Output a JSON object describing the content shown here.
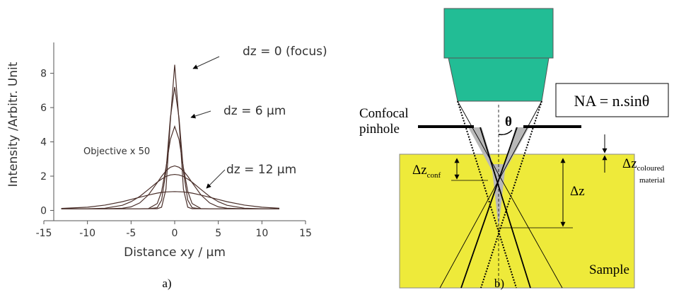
{
  "chart_data": {
    "type": "line",
    "x": [
      -13,
      -10,
      -8,
      -6,
      -5,
      -4,
      -3,
      -2,
      -1.5,
      -1,
      -0.5,
      0,
      0.5,
      1,
      1.5,
      2,
      3,
      4,
      5,
      6,
      8,
      10,
      12
    ],
    "series": [
      {
        "color": "#4a2f2a",
        "values": [
          0.1,
          0.1,
          0.1,
          0.1,
          0.1,
          0.1,
          0.1,
          0.1,
          0.19,
          1.24,
          5.2,
          8.5,
          5.2,
          1.24,
          0.19,
          0.1,
          0.1,
          0.1,
          0.1,
          0.1,
          0.1,
          0.1,
          0.1
        ]
      },
      {
        "color": "#4a2f2a",
        "values": [
          0.1,
          0.1,
          0.1,
          0.1,
          0.1,
          0.1,
          0.1,
          0.16,
          0.6,
          2.27,
          5.38,
          7.2,
          5.38,
          2.27,
          0.6,
          0.16,
          0.1,
          0.1,
          0.1,
          0.1,
          0.1,
          0.1,
          0.1
        ]
      },
      {
        "color": "#4a2f2a",
        "values": [
          0.1,
          0.1,
          0.1,
          0.1,
          0.1,
          0.1,
          0.11,
          0.4,
          1.11,
          2.5,
          4.14,
          4.9,
          4.14,
          2.5,
          1.11,
          0.4,
          0.11,
          0.1,
          0.1,
          0.1,
          0.1,
          0.1,
          0.1
        ]
      },
      {
        "color": "#4a2f2a",
        "values": [
          0.1,
          0.1,
          0.1,
          0.13,
          0.21,
          0.44,
          0.91,
          1.62,
          1.99,
          2.31,
          2.52,
          2.6,
          2.52,
          2.31,
          1.99,
          1.62,
          0.91,
          0.44,
          0.21,
          0.13,
          0.1,
          0.1,
          0.1
        ]
      },
      {
        "color": "#4a2f2a",
        "values": [
          0.1,
          0.1,
          0.13,
          0.3,
          0.51,
          0.82,
          1.23,
          1.65,
          1.83,
          1.98,
          2.07,
          2.1,
          2.07,
          1.98,
          1.83,
          1.65,
          1.23,
          0.82,
          0.51,
          0.3,
          0.13,
          0.1,
          0.1
        ]
      },
      {
        "color": "#4a2f2a",
        "values": [
          0.12,
          0.19,
          0.31,
          0.51,
          0.64,
          0.77,
          0.9,
          1.01,
          1.05,
          1.08,
          1.09,
          1.1,
          1.09,
          1.08,
          1.05,
          1.01,
          0.9,
          0.77,
          0.64,
          0.51,
          0.31,
          0.19,
          0.13
        ]
      }
    ],
    "xlabel": "Distance xy / µm",
    "ylabel": "Intensity /Arbitr. Unit",
    "xlim": [
      -15,
      15
    ],
    "xticks": [
      -15,
      -10,
      -5,
      0,
      5,
      10,
      15
    ],
    "ylim": [
      -0.6,
      9.8
    ],
    "yticks": [
      0,
      2,
      4,
      6,
      8
    ],
    "annotations": [
      "dz = 0 (focus)",
      "dz = 6 µm",
      "dz = 12 µm",
      "Objective  x 50"
    ]
  },
  "diagram": {
    "formula": "NA = n.sinθ",
    "pinhole_label": [
      "Confocal",
      "pinhole"
    ],
    "theta": "θ",
    "dz_conf": {
      "main": "Δz",
      "sub": "conf"
    },
    "dz": "Δz",
    "dz_coloured": {
      "main": "Δz",
      "sub": [
        "coloured",
        "material"
      ]
    },
    "sample": "Sample"
  },
  "captions": [
    "a)",
    "b)"
  ]
}
